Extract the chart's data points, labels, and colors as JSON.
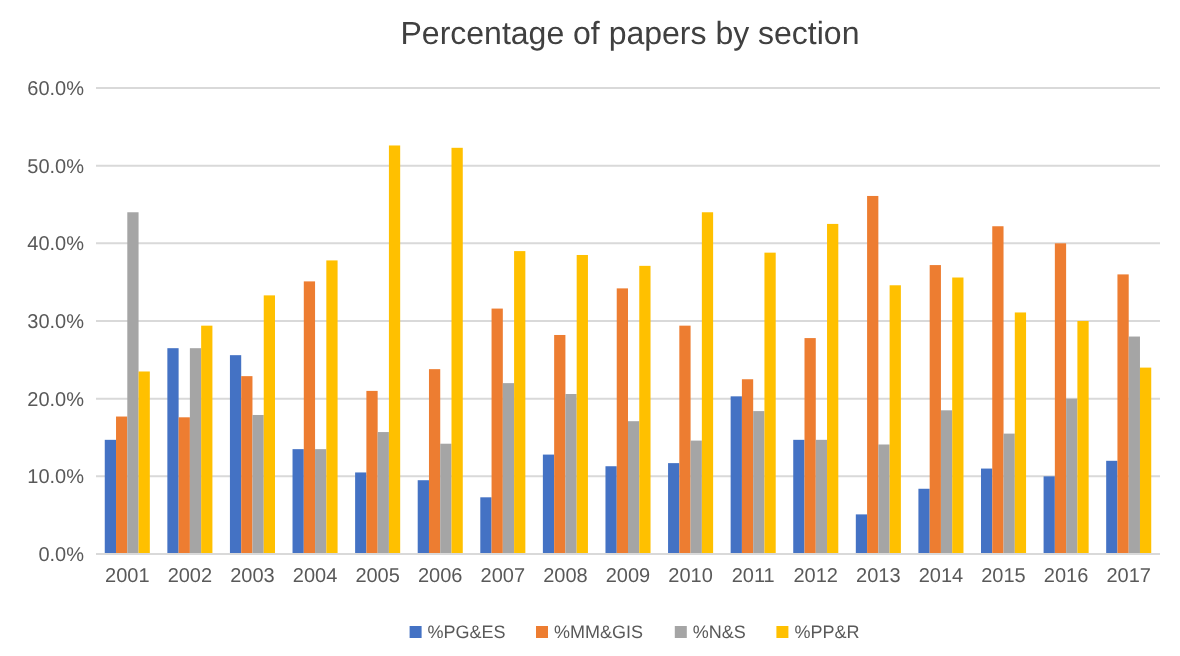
{
  "chart_data": {
    "type": "bar",
    "title": "Percentage of papers by section",
    "categories": [
      "2001",
      "2002",
      "2003",
      "2004",
      "2005",
      "2006",
      "2007",
      "2008",
      "2009",
      "2010",
      "2011",
      "2012",
      "2013",
      "2014",
      "2015",
      "2016",
      "2017"
    ],
    "series": [
      {
        "name": "%PG&ES",
        "color": "#4472c4",
        "values": [
          14.7,
          26.5,
          25.6,
          13.5,
          10.5,
          9.5,
          7.3,
          12.8,
          11.3,
          11.7,
          20.3,
          14.7,
          5.1,
          8.4,
          11.0,
          10.0,
          12.0
        ]
      },
      {
        "name": "%MM&GIS",
        "color": "#ed7d31",
        "values": [
          17.7,
          17.6,
          22.9,
          35.1,
          21.0,
          23.8,
          31.6,
          28.2,
          34.2,
          29.4,
          22.5,
          27.8,
          46.1,
          37.2,
          42.2,
          40.0,
          36.0
        ]
      },
      {
        "name": "%N&S",
        "color": "#a5a5a5",
        "values": [
          44.0,
          26.5,
          17.9,
          13.5,
          15.7,
          14.2,
          22.0,
          20.6,
          17.1,
          14.6,
          18.4,
          14.7,
          14.1,
          18.5,
          15.5,
          20.0,
          28.0
        ]
      },
      {
        "name": "%PP&R",
        "color": "#ffc000",
        "values": [
          23.5,
          29.4,
          33.3,
          37.8,
          52.6,
          52.3,
          39.0,
          38.5,
          37.1,
          44.0,
          38.8,
          42.5,
          34.6,
          35.6,
          31.1,
          30.0,
          24.0
        ]
      }
    ],
    "ylim": [
      0,
      60
    ],
    "yticks": [
      {
        "value": 0,
        "label": "0.0%"
      },
      {
        "value": 10,
        "label": "10.0%"
      },
      {
        "value": 20,
        "label": "20.0%"
      },
      {
        "value": 30,
        "label": "30.0%"
      },
      {
        "value": 40,
        "label": "40.0%"
      },
      {
        "value": 50,
        "label": "50.0%"
      },
      {
        "value": 60,
        "label": "60.0%"
      }
    ],
    "grid": "y",
    "legend": "bottom"
  }
}
